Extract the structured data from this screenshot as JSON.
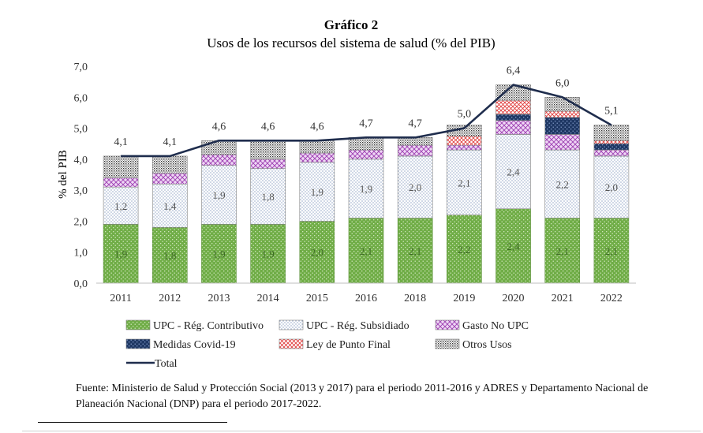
{
  "chart_data": {
    "type": "bar",
    "stacked": true,
    "title": "Gráfico 2",
    "subtitle": "Usos de los recursos del sistema de salud (% del PIB)",
    "xlabel": "",
    "ylabel": "% del PIB",
    "ylim": [
      0,
      7
    ],
    "yticks": [
      "0,0",
      "1,0",
      "2,0",
      "3,0",
      "4,0",
      "5,0",
      "6,0",
      "7,0"
    ],
    "grid": false,
    "legend_position": "bottom",
    "categories": [
      "2011",
      "2012",
      "2013",
      "2014",
      "2015",
      "2016",
      "2018",
      "2019",
      "2020",
      "2021",
      "2022"
    ],
    "series": [
      {
        "name": "UPC - Rég. Contributivo",
        "color": "#70ad47",
        "pattern": "dots-on-green",
        "values": [
          1.9,
          1.8,
          1.9,
          1.9,
          2.0,
          2.1,
          2.1,
          2.2,
          2.4,
          2.1,
          2.1
        ],
        "labels": [
          "1,9",
          "1,8",
          "1,9",
          "1,9",
          "2,0",
          "2,1",
          "2,1",
          "2,2",
          "2,4",
          "2,1",
          "2,1"
        ]
      },
      {
        "name": "UPC - Rég. Subsidiado",
        "color": "#8fa9c9",
        "pattern": "fine-dots",
        "values": [
          1.2,
          1.4,
          1.9,
          1.8,
          1.9,
          1.9,
          2.0,
          2.1,
          2.4,
          2.2,
          2.0
        ],
        "labels": [
          "1,2",
          "1,4",
          "1,9",
          "1,8",
          "1,9",
          "1,9",
          "2,0",
          "2,1",
          "2,4",
          "2,2",
          "2,0"
        ]
      },
      {
        "name": "Gasto No UPC",
        "color": "#b04fc4",
        "pattern": "crosshatch",
        "values": [
          0.3,
          0.35,
          0.35,
          0.3,
          0.3,
          0.3,
          0.35,
          0.15,
          0.45,
          0.5,
          0.2
        ]
      },
      {
        "name": "Medidas Covid-19",
        "color": "#1f3864",
        "pattern": "dots-on-navy",
        "values": [
          0,
          0,
          0,
          0,
          0,
          0,
          0,
          0,
          0.2,
          0.55,
          0.2
        ]
      },
      {
        "name": "Ley de Punto Final",
        "color": "#e03c3c",
        "pattern": "red-crosshatch",
        "values": [
          0,
          0,
          0,
          0,
          0,
          0,
          0,
          0.3,
          0.45,
          0.2,
          0.1
        ]
      },
      {
        "name": "Otros Usos",
        "color": "#333333",
        "pattern": "dense-dots",
        "values": [
          0.7,
          0.55,
          0.45,
          0.6,
          0.4,
          0.4,
          0.25,
          0.35,
          0.5,
          0.45,
          0.5
        ]
      }
    ],
    "total": {
      "name": "Total",
      "color": "#1f2d4d",
      "values": [
        4.1,
        4.1,
        4.6,
        4.6,
        4.6,
        4.7,
        4.7,
        5.0,
        6.4,
        6.0,
        5.1
      ],
      "labels": [
        "4,1",
        "4,1",
        "4,6",
        "4,6",
        "4,6",
        "4,7",
        "4,7",
        "5,0",
        "6,4",
        "6,0",
        "5,1"
      ]
    }
  },
  "footer": {
    "source": "Fuente: Ministerio de Salud y Protección Social (2013 y 2017) para el periodo 2011-2016 y ADRES y Departamento Nacional de Planeación Nacional (DNP) para el periodo 2017-2022."
  }
}
